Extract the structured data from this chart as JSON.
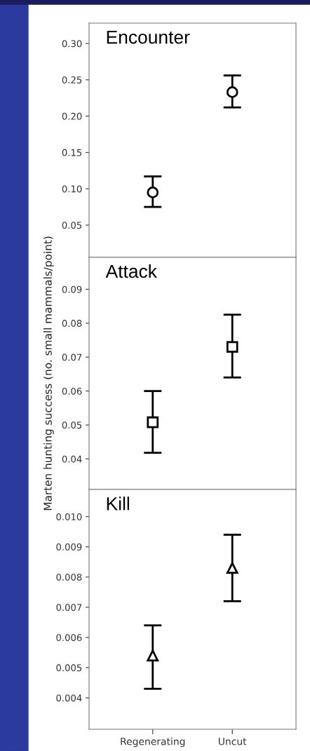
{
  "chart_data": [
    {
      "type": "scatter",
      "title": "Encounter",
      "ylim": [
        0.0056,
        0.328
      ],
      "yticks": [
        {
          "value": 0.05,
          "label": "0.05"
        },
        {
          "value": 0.1,
          "label": "0.10"
        },
        {
          "value": 0.15,
          "label": "0.15"
        },
        {
          "value": 0.2,
          "label": "0.20"
        },
        {
          "value": 0.25,
          "label": "0.25"
        },
        {
          "value": 0.3,
          "label": "0.30"
        }
      ],
      "tick_labels": "y",
      "marker": "circle",
      "series": [
        {
          "color": "#000000",
          "values": [
            0.095,
            0.233
          ],
          "errors": [
            [
              0.075,
              0.117
            ],
            [
              0.212,
              0.256
            ]
          ]
        }
      ]
    },
    {
      "type": "scatter",
      "title": "Attack",
      "ylabel": "Marten hunting success (no. small mammals/point)",
      "ylim": [
        0.031,
        0.0994
      ],
      "yticks": [
        0.04,
        0.05,
        0.06,
        0.07,
        0.08,
        0.09
      ],
      "tick_labels": "y",
      "marker": "square",
      "series": [
        {
          "color": "#000000",
          "values": [
            0.0508,
            0.073
          ],
          "errors": [
            [
              0.0418,
              0.06
            ],
            [
              0.064,
              0.0825
            ]
          ]
        }
      ]
    },
    {
      "type": "scatter",
      "title": "Kill",
      "categories": [
        "Regenerating",
        "Uncut"
      ],
      "ylim": [
        0.00296,
        0.0109
      ],
      "yticks": [
        0.004,
        0.005,
        0.006,
        0.007,
        0.008,
        0.009,
        {
          "value": 0.01,
          "label": "0.010"
        }
      ],
      "marker": "triangle",
      "series": [
        {
          "color": "#000000",
          "values": [
            0.0054,
            0.0083
          ],
          "errors": [
            [
              0.0043,
              0.0064
            ],
            [
              0.0072,
              0.0094
            ]
          ]
        }
      ]
    }
  ]
}
